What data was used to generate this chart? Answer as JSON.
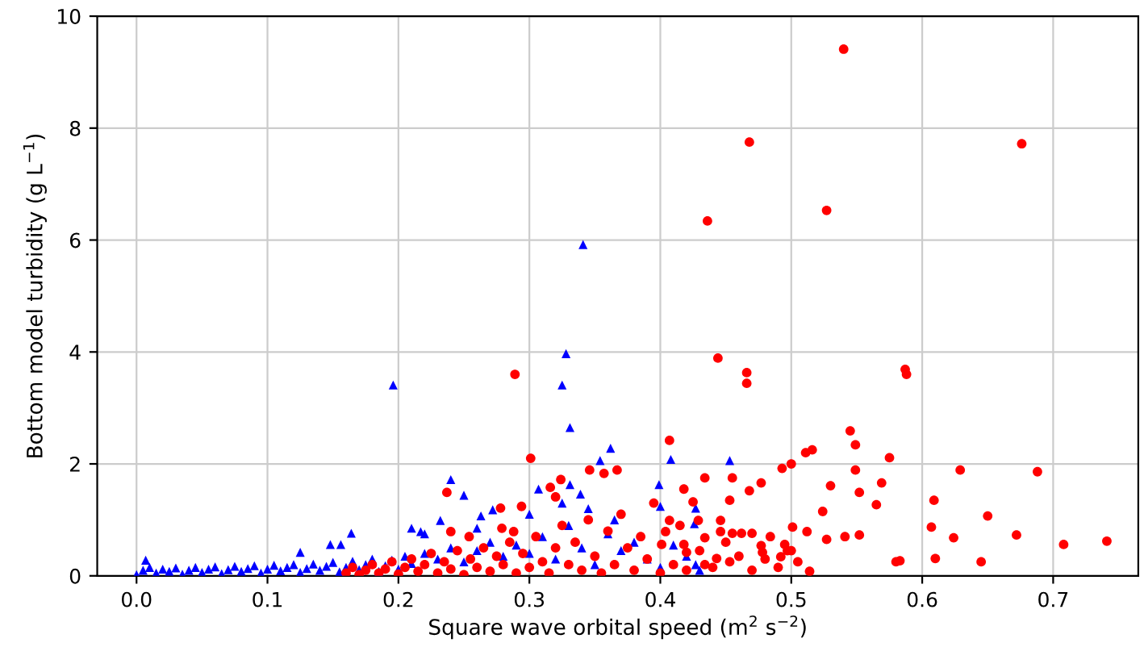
{
  "chart_data": {
    "type": "scatter",
    "xlabel": "Square wave orbital speed (m$^{2}$ s$^{−2}$)",
    "ylabel": "Bottom model turbidity (g L$^{−1}$)",
    "xlim": [
      -0.03,
      0.765
    ],
    "ylim": [
      0,
      10
    ],
    "xticks": [
      {
        "value": 0,
        "label": "0.0"
      },
      0.1,
      0.2,
      0.3,
      0.4,
      0.5,
      0.6,
      0.7
    ],
    "yticks": [
      0,
      2,
      4,
      6,
      8,
      10
    ],
    "grid": true,
    "series": [
      {
        "color": "#0000ff",
        "marker": "triangle",
        "x": [
          0.0,
          0.005,
          0.007,
          0.01,
          0.015,
          0.02,
          0.025,
          0.03,
          0.035,
          0.04,
          0.045,
          0.05,
          0.055,
          0.06,
          0.065,
          0.07,
          0.075,
          0.08,
          0.085,
          0.09,
          0.095,
          0.1,
          0.105,
          0.11,
          0.115,
          0.12,
          0.125,
          0.125,
          0.13,
          0.135,
          0.14,
          0.145,
          0.148,
          0.15,
          0.155,
          0.156,
          0.16,
          0.164,
          0.165,
          0.17,
          0.175,
          0.18,
          0.185,
          0.19,
          0.195,
          0.196,
          0.2,
          0.205,
          0.21,
          0.21,
          0.217,
          0.22,
          0.22,
          0.23,
          0.232,
          0.24,
          0.24,
          0.25,
          0.25,
          0.26,
          0.26,
          0.263,
          0.27,
          0.272,
          0.28,
          0.29,
          0.3,
          0.3,
          0.307,
          0.31,
          0.32,
          0.325,
          0.325,
          0.328,
          0.33,
          0.331,
          0.331,
          0.339,
          0.34,
          0.341,
          0.345,
          0.35,
          0.354,
          0.36,
          0.362,
          0.365,
          0.37,
          0.38,
          0.39,
          0.399,
          0.4,
          0.4,
          0.408,
          0.41,
          0.42,
          0.426,
          0.427,
          0.427,
          0.43,
          0.453
        ],
        "values": [
          0.02,
          0.1,
          0.28,
          0.15,
          0.05,
          0.12,
          0.08,
          0.14,
          0.03,
          0.1,
          0.15,
          0.06,
          0.12,
          0.16,
          0.04,
          0.11,
          0.17,
          0.08,
          0.13,
          0.18,
          0.05,
          0.12,
          0.19,
          0.09,
          0.15,
          0.2,
          0.06,
          0.42,
          0.13,
          0.21,
          0.1,
          0.17,
          0.56,
          0.24,
          0.07,
          0.56,
          0.15,
          0.76,
          0.26,
          0.11,
          0.2,
          0.3,
          0.08,
          0.18,
          0.28,
          3.41,
          0.12,
          0.35,
          0.22,
          0.85,
          0.79,
          0.4,
          0.75,
          0.3,
          0.99,
          0.5,
          1.72,
          0.25,
          1.44,
          0.45,
          0.85,
          1.07,
          0.6,
          1.18,
          0.35,
          0.55,
          0.4,
          1.1,
          1.55,
          0.7,
          0.3,
          1.3,
          3.41,
          3.97,
          0.9,
          1.63,
          2.65,
          1.46,
          0.5,
          5.92,
          1.2,
          0.2,
          2.06,
          0.75,
          2.28,
          1.0,
          0.45,
          0.6,
          0.3,
          1.63,
          0.15,
          1.24,
          2.08,
          0.55,
          0.35,
          0.93,
          1.21,
          0.2,
          0.1,
          2.06
        ]
      },
      {
        "color": "#ff0000",
        "marker": "circle",
        "x": [
          0.16,
          0.165,
          0.17,
          0.175,
          0.18,
          0.185,
          0.19,
          0.195,
          0.2,
          0.205,
          0.21,
          0.215,
          0.22,
          0.225,
          0.23,
          0.235,
          0.237,
          0.24,
          0.24,
          0.245,
          0.25,
          0.254,
          0.255,
          0.26,
          0.265,
          0.27,
          0.275,
          0.278,
          0.279,
          0.28,
          0.285,
          0.288,
          0.289,
          0.29,
          0.294,
          0.295,
          0.3,
          0.301,
          0.305,
          0.31,
          0.315,
          0.316,
          0.32,
          0.32,
          0.324,
          0.325,
          0.33,
          0.335,
          0.34,
          0.345,
          0.346,
          0.35,
          0.355,
          0.357,
          0.36,
          0.365,
          0.367,
          0.37,
          0.375,
          0.38,
          0.385,
          0.39,
          0.395,
          0.4,
          0.401,
          0.404,
          0.407,
          0.407,
          0.41,
          0.415,
          0.418,
          0.418,
          0.42,
          0.42,
          0.425,
          0.429,
          0.43,
          0.434,
          0.434,
          0.434,
          0.436,
          0.44,
          0.443,
          0.444,
          0.446,
          0.446,
          0.45,
          0.453,
          0.453,
          0.455,
          0.455,
          0.46,
          0.462,
          0.466,
          0.466,
          0.468,
          0.468,
          0.47,
          0.47,
          0.477,
          0.477,
          0.478,
          0.48,
          0.484,
          0.49,
          0.492,
          0.493,
          0.495,
          0.497,
          0.5,
          0.5,
          0.501,
          0.505,
          0.511,
          0.512,
          0.514,
          0.516,
          0.524,
          0.527,
          0.527,
          0.53,
          0.54,
          0.541,
          0.545,
          0.549,
          0.549,
          0.552,
          0.552,
          0.565,
          0.569,
          0.575,
          0.58,
          0.583,
          0.587,
          0.588,
          0.607,
          0.609,
          0.61,
          0.624,
          0.629,
          0.645,
          0.65,
          0.672,
          0.676,
          0.688,
          0.708,
          0.741
        ],
        "values": [
          0.05,
          0.15,
          0.02,
          0.1,
          0.2,
          0.05,
          0.12,
          0.25,
          0.03,
          0.15,
          0.3,
          0.08,
          0.2,
          0.4,
          0.05,
          0.25,
          1.49,
          0.12,
          0.79,
          0.45,
          0.02,
          0.7,
          0.3,
          0.15,
          0.5,
          0.08,
          0.35,
          1.21,
          0.85,
          0.2,
          0.6,
          0.79,
          3.6,
          0.05,
          1.24,
          0.4,
          0.15,
          2.1,
          0.7,
          0.25,
          0.05,
          1.58,
          0.5,
          1.41,
          1.72,
          0.9,
          0.2,
          0.6,
          0.1,
          1.0,
          1.89,
          0.35,
          0.05,
          1.83,
          0.8,
          0.2,
          1.89,
          1.1,
          0.5,
          0.1,
          0.7,
          0.3,
          1.3,
          0.05,
          0.56,
          0.79,
          0.99,
          2.42,
          0.2,
          0.9,
          1.55,
          0.56,
          0.1,
          0.42,
          1.32,
          0.99,
          0.45,
          1.75,
          0.68,
          0.2,
          6.34,
          0.15,
          0.31,
          3.89,
          0.99,
          0.79,
          0.6,
          1.35,
          0.25,
          1.75,
          0.76,
          0.35,
          0.76,
          3.63,
          3.44,
          1.52,
          7.75,
          0.1,
          0.76,
          1.66,
          0.54,
          0.42,
          0.3,
          0.7,
          0.15,
          0.34,
          1.92,
          0.56,
          0.45,
          0.45,
          2.0,
          0.87,
          0.25,
          2.2,
          0.79,
          0.08,
          2.25,
          1.15,
          6.53,
          0.65,
          1.61,
          9.41,
          0.7,
          2.59,
          2.34,
          1.89,
          1.49,
          0.73,
          1.27,
          1.66,
          2.11,
          0.25,
          0.27,
          3.69,
          3.6,
          0.87,
          1.35,
          0.31,
          0.68,
          1.89,
          0.25,
          1.07,
          0.73,
          7.72,
          1.86,
          0.56,
          0.62
        ]
      }
    ]
  }
}
